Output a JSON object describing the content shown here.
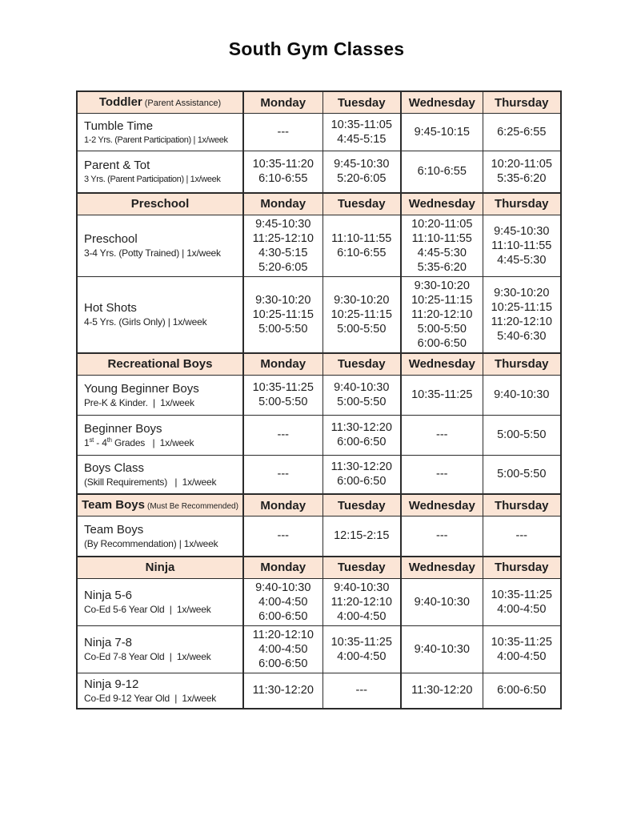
{
  "title": "South Gym Classes",
  "days": [
    "Monday",
    "Tuesday",
    "Wednesday",
    "Thursday"
  ],
  "sections": [
    {
      "name": "Toddler",
      "note": "(Parent Assistance)",
      "rows": [
        {
          "title": "Tumble Time",
          "subtitle": "1-2 Yrs. (Parent Participation) | 1x/week",
          "monday": "---",
          "tuesday": "10:35-11:05\n4:45-5:15",
          "wednesday": "9:45-10:15",
          "thursday": "6:25-6:55"
        },
        {
          "title": "Parent & Tot",
          "subtitle": "3 Yrs. (Parent Participation) | 1x/week",
          "monday": "10:35-11:20\n6:10-6:55",
          "tuesday": "9:45-10:30\n5:20-6:05",
          "wednesday": "6:10-6:55",
          "thursday": "10:20-11:05\n5:35-6:20"
        }
      ]
    },
    {
      "name": "Preschool",
      "note": "",
      "rows": [
        {
          "title": "Preschool",
          "subtitle": "3-4 Yrs. (Potty Trained) | 1x/week",
          "monday": "9:45-10:30\n11:25-12:10\n4:30-5:15\n5:20-6:05",
          "tuesday": "11:10-11:55\n6:10-6:55",
          "wednesday": "10:20-11:05\n11:10-11:55\n4:45-5:30\n5:35-6:20",
          "thursday": "9:45-10:30\n11:10-11:55\n4:45-5:30"
        },
        {
          "title": "Hot Shots",
          "subtitle": "4-5 Yrs. (Girls Only) | 1x/week",
          "monday": "9:30-10:20\n10:25-11:15\n5:00-5:50",
          "tuesday": "9:30-10:20\n10:25-11:15\n5:00-5:50",
          "wednesday": "9:30-10:20\n10:25-11:15\n11:20-12:10\n5:00-5:50\n6:00-6:50",
          "thursday": "9:30-10:20\n10:25-11:15\n11:20-12:10\n5:40-6:30"
        }
      ]
    },
    {
      "name": "Recreational Boys",
      "note": "",
      "rows": [
        {
          "title": "Young Beginner Boys",
          "subtitle": "Pre-K & Kinder.  |  1x/week",
          "monday": "10:35-11:25\n5:00-5:50",
          "tuesday": "9:40-10:30\n5:00-5:50",
          "wednesday": "10:35-11:25",
          "thursday": "9:40-10:30"
        },
        {
          "title": "Beginner Boys",
          "subtitle_parts": {
            "n1": "1",
            "s1": "st",
            "n2": " - 4",
            "s2": "th",
            "rest": " Grades   |  1x/week"
          },
          "monday": "---",
          "tuesday": "11:30-12:20\n6:00-6:50",
          "wednesday": "---",
          "thursday": "5:00-5:50"
        },
        {
          "title": "Boys Class",
          "subtitle": "(Skill Requirements)   |  1x/week",
          "monday": "---",
          "tuesday": "11:30-12:20\n6:00-6:50",
          "wednesday": "---",
          "thursday": "5:00-5:50"
        }
      ]
    },
    {
      "name": "Team Boys",
      "note": "(Must Be Recommended)",
      "rows": [
        {
          "title": "Team Boys",
          "subtitle": "(By Recommendation) | 1x/week",
          "monday": "---",
          "tuesday": "12:15-2:15",
          "wednesday": "---",
          "thursday": "---"
        }
      ]
    },
    {
      "name": "Ninja",
      "note": "",
      "rows": [
        {
          "title": "Ninja 5-6",
          "subtitle": "Co-Ed 5-6 Year Old  |  1x/week",
          "monday": "9:40-10:30\n4:00-4:50\n6:00-6:50",
          "tuesday": "9:40-10:30\n11:20-12:10\n4:00-4:50",
          "wednesday": "9:40-10:30",
          "thursday": "10:35-11:25\n4:00-4:50"
        },
        {
          "title": "Ninja 7-8",
          "subtitle": "Co-Ed 7-8 Year Old  |  1x/week",
          "monday": "11:20-12:10\n4:00-4:50\n6:00-6:50",
          "tuesday": "10:35-11:25\n4:00-4:50",
          "wednesday": "9:40-10:30",
          "thursday": "10:35-11:25\n4:00-4:50"
        },
        {
          "title": "Ninja 9-12",
          "subtitle": "Co-Ed 9-12 Year Old  |  1x/week",
          "monday": "11:30-12:20",
          "tuesday": "---",
          "wednesday": "11:30-12:20",
          "thursday": "6:00-6:50"
        }
      ]
    }
  ],
  "colors": {
    "header_bg": "#fbe5d6",
    "border": "#2b2b2b",
    "text": "#1f1f1f"
  }
}
